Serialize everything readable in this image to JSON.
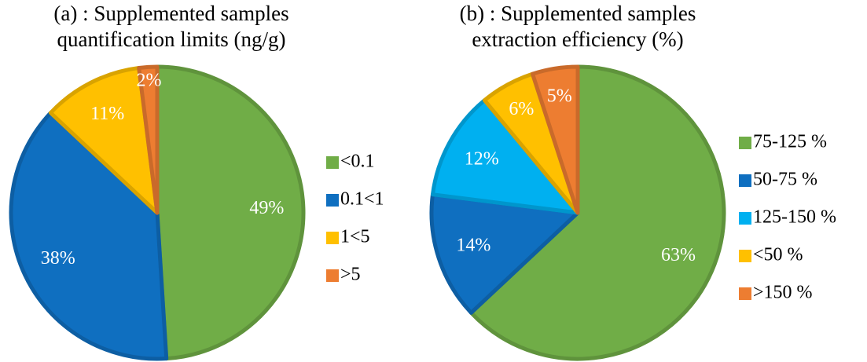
{
  "chart_data": [
    {
      "type": "pie",
      "title": [
        "(a) : Supplemented samples",
        "quantification limits (ng/g)"
      ],
      "categories": [
        "<0.1",
        "0.1<1",
        "1<5",
        ">5"
      ],
      "values": [
        49,
        38,
        11,
        2
      ],
      "value_labels": [
        "49%",
        "38%",
        "11%",
        "2%"
      ],
      "colors": [
        "#70ad47",
        "#0f6fc0",
        "#ffc000",
        "#ed7d31"
      ]
    },
    {
      "type": "pie",
      "title": [
        "(b) : Supplemented samples",
        "extraction efficiency (%)"
      ],
      "categories": [
        "75-125 %",
        "50-75 %",
        "125-150 %",
        "<50 %",
        ">150 %"
      ],
      "values": [
        63,
        14,
        12,
        6,
        5
      ],
      "value_labels": [
        "63%",
        "14%",
        "12%",
        "6%",
        "5%"
      ],
      "colors": [
        "#70ad47",
        "#0f6fc0",
        "#00b0f0",
        "#ffc000",
        "#ed7d31"
      ]
    }
  ]
}
